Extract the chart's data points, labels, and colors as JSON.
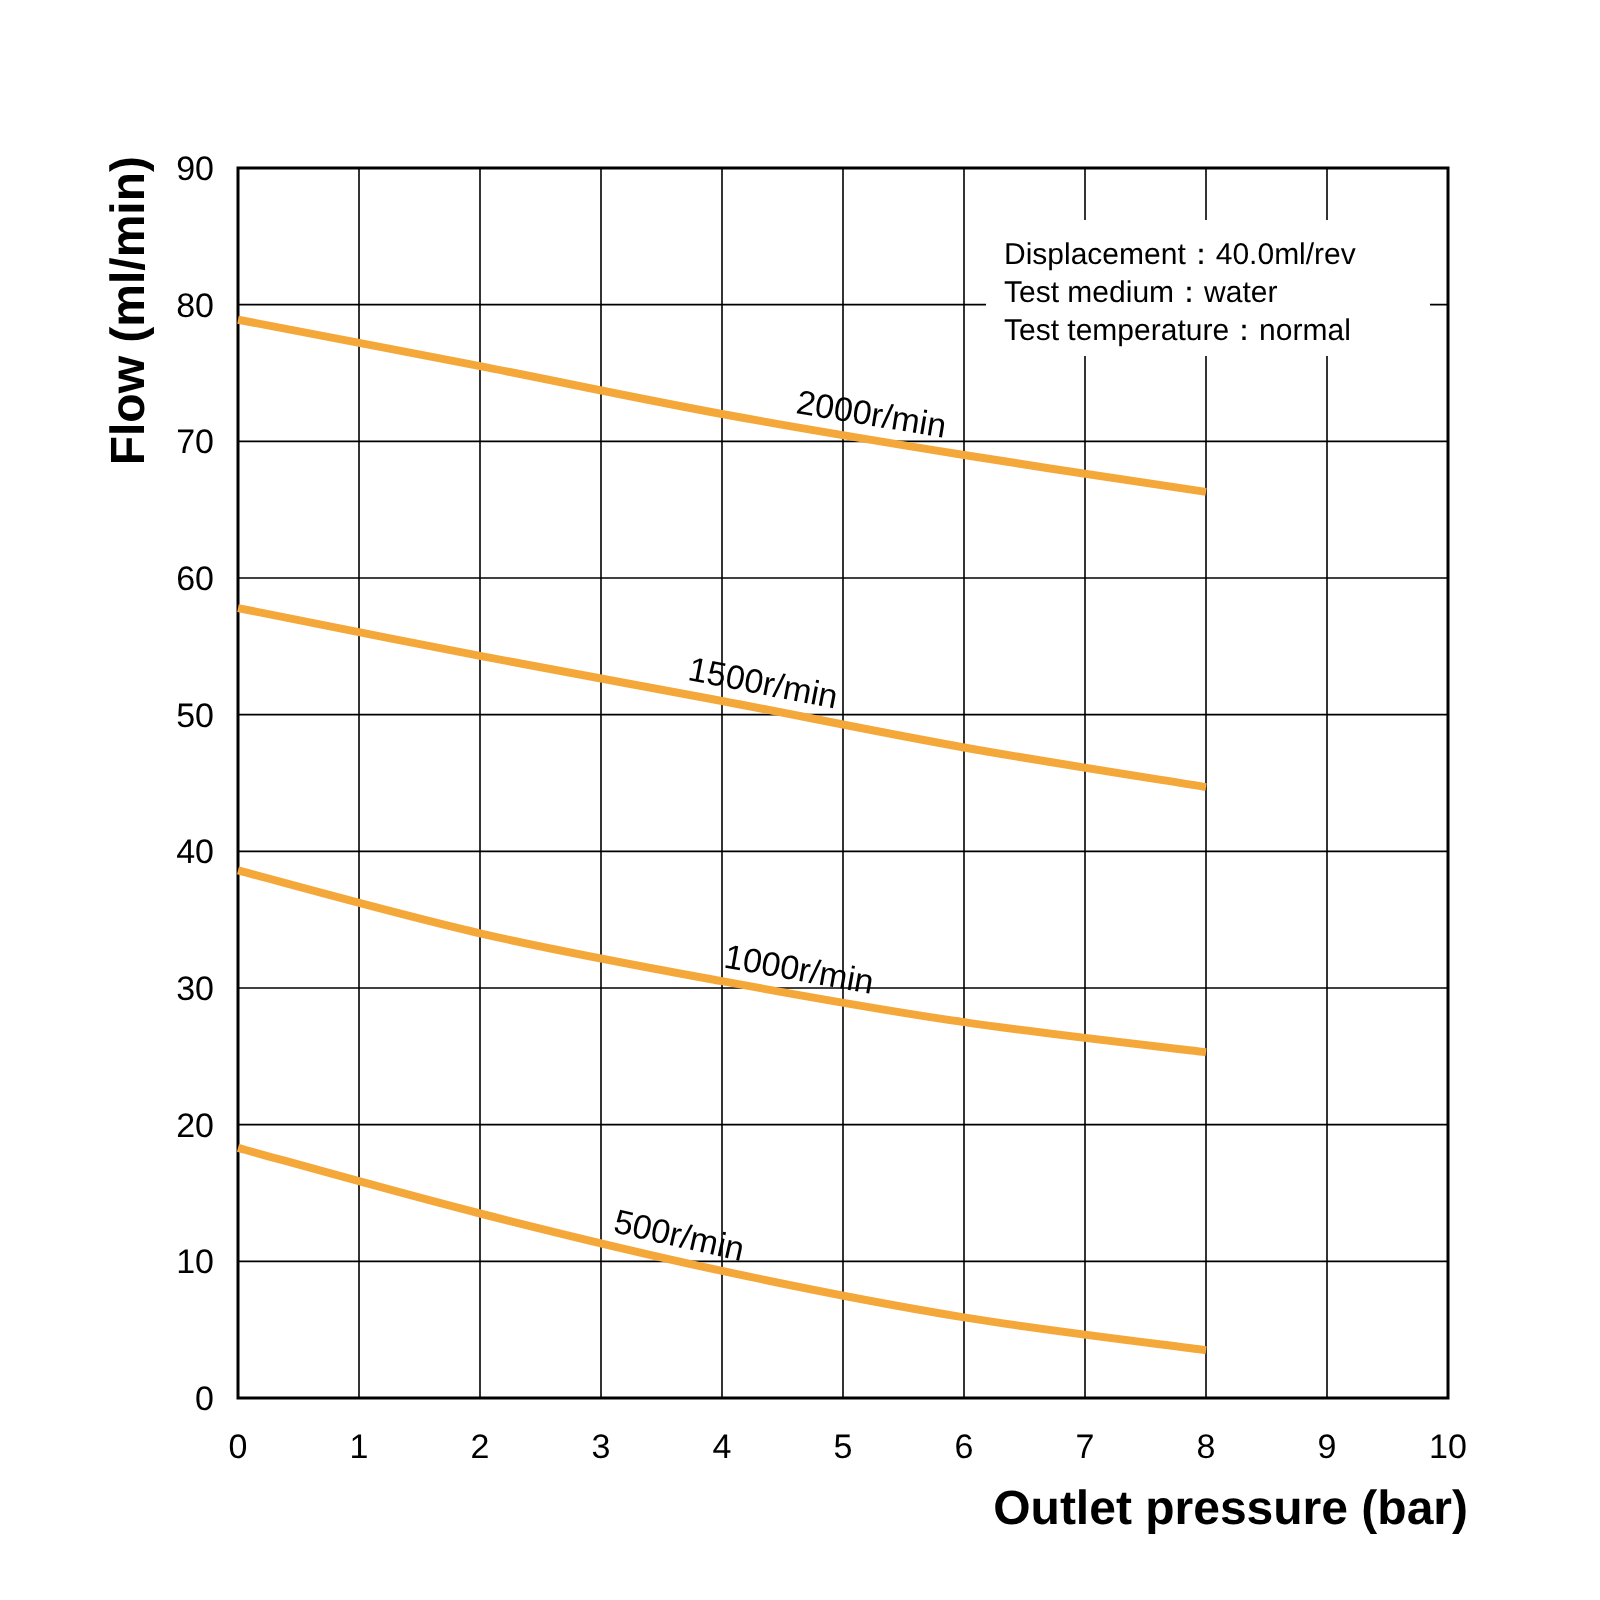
{
  "chart_data": {
    "type": "line",
    "xlabel": "Outlet pressure (bar)",
    "ylabel": "Flow (ml/min)",
    "xlim": [
      0,
      10
    ],
    "ylim": [
      0,
      90
    ],
    "xticks": [
      0,
      1,
      2,
      3,
      4,
      5,
      6,
      7,
      8,
      9,
      10
    ],
    "yticks": [
      0,
      10,
      20,
      30,
      40,
      50,
      60,
      70,
      80,
      90
    ],
    "grid": true,
    "legend": false,
    "marker": "none",
    "line_style": "solid",
    "annotations": [
      "Displacement：40.0ml/rev",
      "Test medium：water",
      "Test temperature：normal"
    ],
    "series": [
      {
        "name": "2000r/min",
        "color": "#f5a83a",
        "x": [
          0,
          2,
          4,
          6,
          8
        ],
        "values": [
          78.9,
          75.5,
          72.0,
          69.0,
          66.3
        ]
      },
      {
        "name": "1500r/min",
        "color": "#f5a83a",
        "x": [
          0,
          2,
          4,
          6,
          8
        ],
        "values": [
          57.8,
          54.3,
          51.0,
          47.6,
          44.7
        ]
      },
      {
        "name": "1000r/min",
        "color": "#f5a83a",
        "x": [
          0,
          2,
          4,
          6,
          8
        ],
        "values": [
          38.6,
          34.0,
          30.5,
          27.5,
          25.3
        ]
      },
      {
        "name": "500r/min",
        "color": "#f5a83a",
        "x": [
          0,
          2,
          4,
          6,
          8
        ],
        "values": [
          18.3,
          13.5,
          9.3,
          5.9,
          3.5
        ]
      }
    ]
  }
}
